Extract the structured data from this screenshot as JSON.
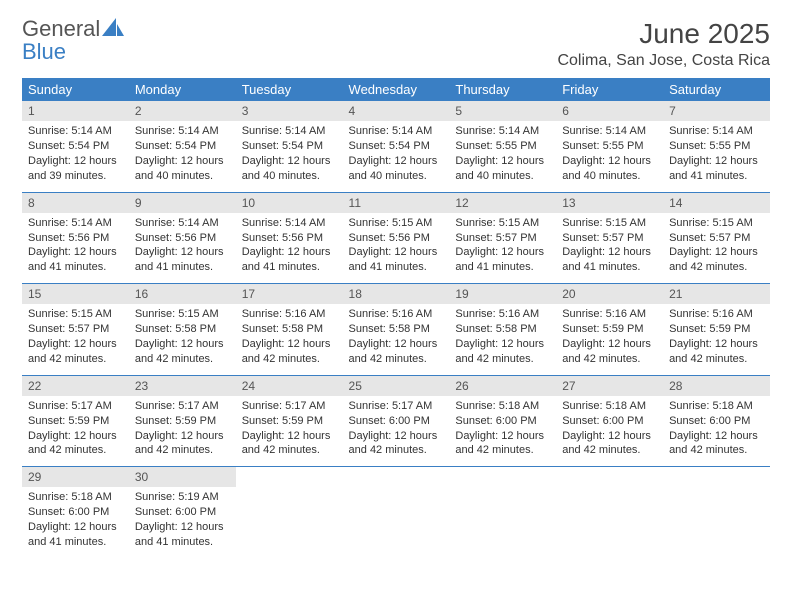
{
  "brand": {
    "part1": "General",
    "part2": "Blue"
  },
  "title": "June 2025",
  "location": "Colima, San Jose, Costa Rica",
  "colors": {
    "header_bg": "#3a7fc4",
    "header_text": "#ffffff",
    "daynum_bg": "#e6e6e6",
    "row_border": "#3a7fc4",
    "body_bg": "#ffffff",
    "text": "#333333"
  },
  "fonts": {
    "title_size": 28,
    "location_size": 16,
    "dayhead_size": 13,
    "cell_size": 11
  },
  "day_names": [
    "Sunday",
    "Monday",
    "Tuesday",
    "Wednesday",
    "Thursday",
    "Friday",
    "Saturday"
  ],
  "labels": {
    "sunrise": "Sunrise:",
    "sunset": "Sunset:",
    "daylight": "Daylight:"
  },
  "weeks": [
    [
      {
        "n": "1",
        "sunrise": "5:14 AM",
        "sunset": "5:54 PM",
        "daylight": "12 hours and 39 minutes."
      },
      {
        "n": "2",
        "sunrise": "5:14 AM",
        "sunset": "5:54 PM",
        "daylight": "12 hours and 40 minutes."
      },
      {
        "n": "3",
        "sunrise": "5:14 AM",
        "sunset": "5:54 PM",
        "daylight": "12 hours and 40 minutes."
      },
      {
        "n": "4",
        "sunrise": "5:14 AM",
        "sunset": "5:54 PM",
        "daylight": "12 hours and 40 minutes."
      },
      {
        "n": "5",
        "sunrise": "5:14 AM",
        "sunset": "5:55 PM",
        "daylight": "12 hours and 40 minutes."
      },
      {
        "n": "6",
        "sunrise": "5:14 AM",
        "sunset": "5:55 PM",
        "daylight": "12 hours and 40 minutes."
      },
      {
        "n": "7",
        "sunrise": "5:14 AM",
        "sunset": "5:55 PM",
        "daylight": "12 hours and 41 minutes."
      }
    ],
    [
      {
        "n": "8",
        "sunrise": "5:14 AM",
        "sunset": "5:56 PM",
        "daylight": "12 hours and 41 minutes."
      },
      {
        "n": "9",
        "sunrise": "5:14 AM",
        "sunset": "5:56 PM",
        "daylight": "12 hours and 41 minutes."
      },
      {
        "n": "10",
        "sunrise": "5:14 AM",
        "sunset": "5:56 PM",
        "daylight": "12 hours and 41 minutes."
      },
      {
        "n": "11",
        "sunrise": "5:15 AM",
        "sunset": "5:56 PM",
        "daylight": "12 hours and 41 minutes."
      },
      {
        "n": "12",
        "sunrise": "5:15 AM",
        "sunset": "5:57 PM",
        "daylight": "12 hours and 41 minutes."
      },
      {
        "n": "13",
        "sunrise": "5:15 AM",
        "sunset": "5:57 PM",
        "daylight": "12 hours and 41 minutes."
      },
      {
        "n": "14",
        "sunrise": "5:15 AM",
        "sunset": "5:57 PM",
        "daylight": "12 hours and 42 minutes."
      }
    ],
    [
      {
        "n": "15",
        "sunrise": "5:15 AM",
        "sunset": "5:57 PM",
        "daylight": "12 hours and 42 minutes."
      },
      {
        "n": "16",
        "sunrise": "5:15 AM",
        "sunset": "5:58 PM",
        "daylight": "12 hours and 42 minutes."
      },
      {
        "n": "17",
        "sunrise": "5:16 AM",
        "sunset": "5:58 PM",
        "daylight": "12 hours and 42 minutes."
      },
      {
        "n": "18",
        "sunrise": "5:16 AM",
        "sunset": "5:58 PM",
        "daylight": "12 hours and 42 minutes."
      },
      {
        "n": "19",
        "sunrise": "5:16 AM",
        "sunset": "5:58 PM",
        "daylight": "12 hours and 42 minutes."
      },
      {
        "n": "20",
        "sunrise": "5:16 AM",
        "sunset": "5:59 PM",
        "daylight": "12 hours and 42 minutes."
      },
      {
        "n": "21",
        "sunrise": "5:16 AM",
        "sunset": "5:59 PM",
        "daylight": "12 hours and 42 minutes."
      }
    ],
    [
      {
        "n": "22",
        "sunrise": "5:17 AM",
        "sunset": "5:59 PM",
        "daylight": "12 hours and 42 minutes."
      },
      {
        "n": "23",
        "sunrise": "5:17 AM",
        "sunset": "5:59 PM",
        "daylight": "12 hours and 42 minutes."
      },
      {
        "n": "24",
        "sunrise": "5:17 AM",
        "sunset": "5:59 PM",
        "daylight": "12 hours and 42 minutes."
      },
      {
        "n": "25",
        "sunrise": "5:17 AM",
        "sunset": "6:00 PM",
        "daylight": "12 hours and 42 minutes."
      },
      {
        "n": "26",
        "sunrise": "5:18 AM",
        "sunset": "6:00 PM",
        "daylight": "12 hours and 42 minutes."
      },
      {
        "n": "27",
        "sunrise": "5:18 AM",
        "sunset": "6:00 PM",
        "daylight": "12 hours and 42 minutes."
      },
      {
        "n": "28",
        "sunrise": "5:18 AM",
        "sunset": "6:00 PM",
        "daylight": "12 hours and 42 minutes."
      }
    ],
    [
      {
        "n": "29",
        "sunrise": "5:18 AM",
        "sunset": "6:00 PM",
        "daylight": "12 hours and 41 minutes."
      },
      {
        "n": "30",
        "sunrise": "5:19 AM",
        "sunset": "6:00 PM",
        "daylight": "12 hours and 41 minutes."
      },
      null,
      null,
      null,
      null,
      null
    ]
  ]
}
